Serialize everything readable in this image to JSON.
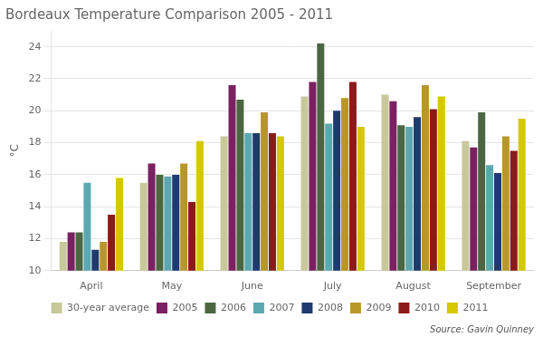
{
  "chart_data": {
    "type": "bar",
    "title": "Bordeaux Temperature Comparison 2005 - 2011",
    "ylabel": "°C",
    "annotation": "Source: Gavin Quinney",
    "categories": [
      "April",
      "May",
      "June",
      "July",
      "August",
      "September"
    ],
    "series": [
      {
        "name": "30-year average",
        "color": "#c8c89a",
        "values": [
          11.8,
          15.5,
          18.4,
          20.9,
          21.0,
          18.1
        ]
      },
      {
        "name": "2005",
        "color": "#7b2060",
        "values": [
          12.4,
          16.7,
          21.6,
          21.8,
          20.6,
          17.7
        ]
      },
      {
        "name": "2006",
        "color": "#4a6741",
        "values": [
          12.4,
          16.0,
          20.7,
          24.2,
          19.1,
          19.9
        ]
      },
      {
        "name": "2007",
        "color": "#5ba8b0",
        "values": [
          15.5,
          15.9,
          18.6,
          19.2,
          19.0,
          16.6
        ]
      },
      {
        "name": "2008",
        "color": "#1e3a6e",
        "values": [
          11.3,
          16.0,
          18.6,
          20.0,
          19.6,
          16.1
        ]
      },
      {
        "name": "2009",
        "color": "#b8972a",
        "values": [
          11.8,
          16.7,
          19.9,
          20.8,
          21.6,
          18.4
        ]
      },
      {
        "name": "2010",
        "color": "#8b1a1a",
        "values": [
          13.5,
          14.3,
          18.6,
          21.8,
          20.1,
          17.5
        ]
      },
      {
        "name": "2011",
        "color": "#d4c800",
        "values": [
          15.8,
          18.1,
          18.4,
          19.0,
          20.9,
          19.5
        ]
      }
    ],
    "ylim": [
      10,
      25
    ],
    "yticks": [
      10,
      12,
      14,
      16,
      18,
      20,
      22,
      24
    ],
    "grid": true,
    "legend": "bottom"
  }
}
